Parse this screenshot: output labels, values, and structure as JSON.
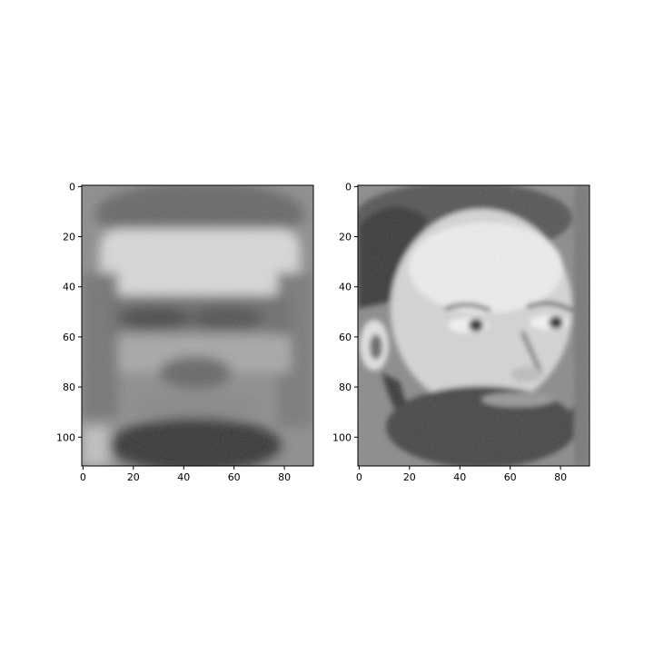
{
  "chart_data": [
    {
      "type": "heatmap",
      "subject": "reconstructed-face",
      "image_shape": [
        112,
        92
      ],
      "colormap": "gray",
      "xlim": [
        -0.5,
        91.5
      ],
      "ylim": [
        111.5,
        -0.5
      ],
      "xticks": [
        0,
        20,
        40,
        60,
        80
      ],
      "yticks": [
        0,
        20,
        40,
        60,
        80,
        100
      ]
    },
    {
      "type": "heatmap",
      "subject": "original-face",
      "image_shape": [
        112,
        92
      ],
      "colormap": "gray",
      "xlim": [
        -0.5,
        91.5
      ],
      "ylim": [
        111.5,
        -0.5
      ],
      "xticks": [
        0,
        20,
        40,
        60,
        80
      ],
      "yticks": [
        0,
        20,
        40,
        60,
        80,
        100
      ]
    }
  ]
}
